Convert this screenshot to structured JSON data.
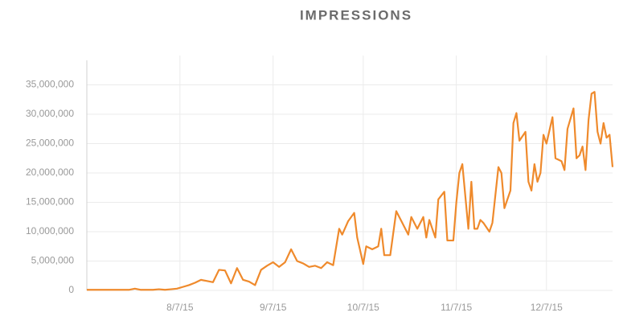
{
  "chart_data": {
    "type": "line",
    "title": "IMPRESSIONS",
    "x": [
      "2015-07-07",
      "2015-07-09",
      "2015-07-11",
      "2015-07-13",
      "2015-07-15",
      "2015-07-17",
      "2015-07-19",
      "2015-07-21",
      "2015-07-23",
      "2015-07-25",
      "2015-07-27",
      "2015-07-29",
      "2015-07-31",
      "2015-08-02",
      "2015-08-04",
      "2015-08-06",
      "2015-08-08",
      "2015-08-10",
      "2015-08-12",
      "2015-08-14",
      "2015-08-16",
      "2015-08-18",
      "2015-08-20",
      "2015-08-22",
      "2015-08-24",
      "2015-08-26",
      "2015-08-28",
      "2015-08-30",
      "2015-09-01",
      "2015-09-03",
      "2015-09-05",
      "2015-09-07",
      "2015-09-09",
      "2015-09-11",
      "2015-09-13",
      "2015-09-15",
      "2015-09-17",
      "2015-09-19",
      "2015-09-21",
      "2015-09-23",
      "2015-09-25",
      "2015-09-27",
      "2015-09-29",
      "2015-09-30",
      "2015-10-02",
      "2015-10-04",
      "2015-10-05",
      "2015-10-07",
      "2015-10-08",
      "2015-10-10",
      "2015-10-12",
      "2015-10-13",
      "2015-10-14",
      "2015-10-16",
      "2015-10-18",
      "2015-10-20",
      "2015-10-22",
      "2015-10-23",
      "2015-10-25",
      "2015-10-27",
      "2015-10-28",
      "2015-10-29",
      "2015-10-31",
      "2015-11-01",
      "2015-11-03",
      "2015-11-04",
      "2015-11-06",
      "2015-11-07",
      "2015-11-08",
      "2015-11-09",
      "2015-11-11",
      "2015-11-12",
      "2015-11-13",
      "2015-11-14",
      "2015-11-15",
      "2015-11-16",
      "2015-11-18",
      "2015-11-19",
      "2015-11-21",
      "2015-11-22",
      "2015-11-23",
      "2015-11-25",
      "2015-11-26",
      "2015-11-27",
      "2015-11-28",
      "2015-11-30",
      "2015-12-01",
      "2015-12-02",
      "2015-12-03",
      "2015-12-04",
      "2015-12-05",
      "2015-12-06",
      "2015-12-07",
      "2015-12-09",
      "2015-12-10",
      "2015-12-12",
      "2015-12-13",
      "2015-12-14",
      "2015-12-16",
      "2015-12-17",
      "2015-12-18",
      "2015-12-19",
      "2015-12-20",
      "2015-12-21",
      "2015-12-22",
      "2015-12-23",
      "2015-12-24",
      "2015-12-25",
      "2015-12-26",
      "2015-12-27",
      "2015-12-28",
      "2015-12-29"
    ],
    "series": [
      {
        "color": "#ef8a2c",
        "values": [
          100000,
          100000,
          100000,
          100000,
          100000,
          100000,
          100000,
          100000,
          300000,
          100000,
          100000,
          100000,
          200000,
          100000,
          200000,
          300000,
          600000,
          900000,
          1300000,
          1800000,
          1600000,
          1400000,
          3500000,
          3400000,
          1200000,
          3800000,
          1800000,
          1500000,
          900000,
          3500000,
          4200000,
          4800000,
          4000000,
          4800000,
          7000000,
          5000000,
          4600000,
          4000000,
          4200000,
          3800000,
          4800000,
          4300000,
          10500000,
          9500000,
          11800000,
          13200000,
          9000000,
          4500000,
          7500000,
          7000000,
          7500000,
          10500000,
          6000000,
          6000000,
          13500000,
          11500000,
          9500000,
          12500000,
          10500000,
          12500000,
          9000000,
          12000000,
          9000000,
          15500000,
          16800000,
          8500000,
          8500000,
          15000000,
          20000000,
          21500000,
          10500000,
          18500000,
          10500000,
          10500000,
          12000000,
          11500000,
          10000000,
          11500000,
          21000000,
          20000000,
          14000000,
          17000000,
          28500000,
          30200000,
          25500000,
          27000000,
          18500000,
          17000000,
          21500000,
          18500000,
          20000000,
          26500000,
          25000000,
          29500000,
          22500000,
          22000000,
          20500000,
          27500000,
          31000000,
          22500000,
          23000000,
          24500000,
          20500000,
          29000000,
          33500000,
          33800000,
          27000000,
          25000000,
          28500000,
          26000000,
          26500000,
          21000000
        ]
      }
    ],
    "xlim": [
      "2015-07-07",
      "2015-12-29"
    ],
    "xticks": [
      {
        "value": "2015-08-07",
        "label": "8/7/15"
      },
      {
        "value": "2015-09-07",
        "label": "9/7/15"
      },
      {
        "value": "2015-10-07",
        "label": "10/7/15"
      },
      {
        "value": "2015-11-07",
        "label": "11/7/15"
      },
      {
        "value": "2015-12-07",
        "label": "12/7/15"
      }
    ],
    "ylim": [
      0,
      40000000
    ],
    "yticks": [
      0,
      {
        "value": 5000000,
        "label": "5,000,000"
      },
      {
        "value": 10000000,
        "label": "10,000,000"
      },
      {
        "value": 15000000,
        "label": "15,000,000"
      },
      {
        "value": 20000000,
        "label": "20,000,000"
      },
      {
        "value": 25000000,
        "label": "25,000,000"
      },
      {
        "value": 30000000,
        "label": "30,000,000"
      },
      {
        "value": 35000000,
        "label": "35,000,000"
      }
    ],
    "grid": true
  }
}
